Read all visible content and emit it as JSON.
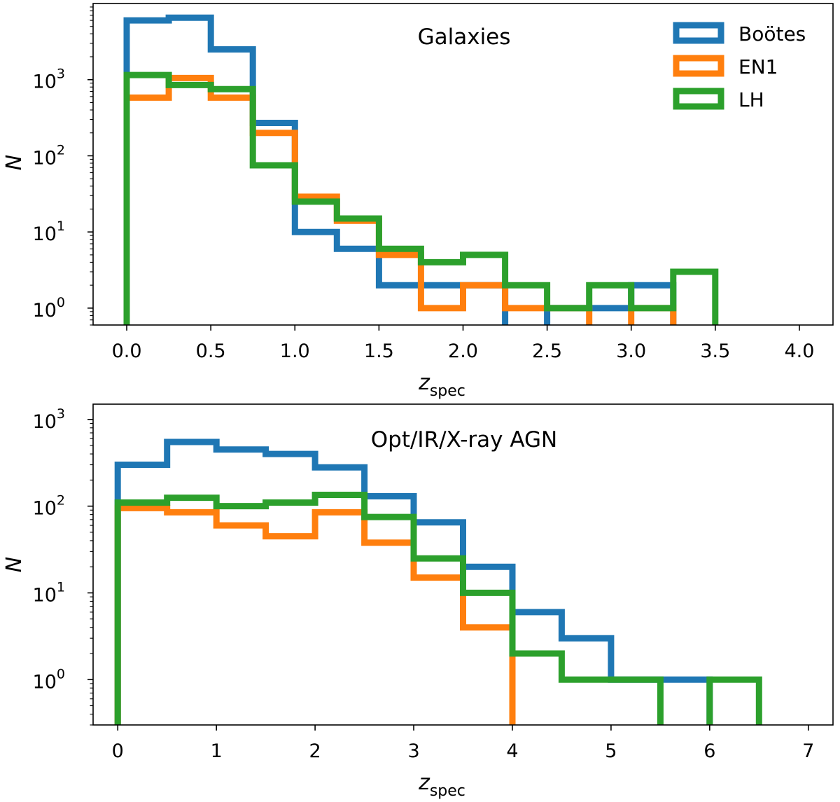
{
  "chart_data": [
    {
      "type": "histogram-step",
      "title": "Galaxies",
      "xlabel": "z",
      "xlabel_sub": "spec",
      "ylabel": "N",
      "yscale": "log",
      "xlim": [
        -0.2,
        4.2
      ],
      "ylim": [
        0.6,
        10000
      ],
      "xticks": [
        "0.0",
        "0.5",
        "1.0",
        "1.5",
        "2.0",
        "2.5",
        "3.0",
        "3.5",
        "4.0"
      ],
      "yticks": [
        {
          "base": "10",
          "exp": "0",
          "value": 1
        },
        {
          "base": "10",
          "exp": "1",
          "value": 10
        },
        {
          "base": "10",
          "exp": "2",
          "value": 100
        },
        {
          "base": "10",
          "exp": "3",
          "value": 1000
        }
      ],
      "legend": {
        "location": "upper right",
        "entries": [
          "Boötes",
          "EN1",
          "LH"
        ]
      },
      "series": [
        {
          "name": "Boötes",
          "color": "#1f77b4",
          "start": 0,
          "width": 0.25,
          "values": [
            6000,
            6500,
            2500,
            270,
            10,
            6,
            2,
            2,
            2,
            0,
            1,
            1,
            2,
            0
          ]
        },
        {
          "name": "EN1",
          "color": "#ff7f0e",
          "start": 0,
          "width": 0.25,
          "values": [
            580,
            1050,
            580,
            200,
            29,
            14,
            5,
            1,
            2,
            1,
            1,
            0,
            1,
            0
          ]
        },
        {
          "name": "LH",
          "color": "#2ca02c",
          "start": 0,
          "width": 0.25,
          "values": [
            1150,
            850,
            750,
            75,
            25,
            15,
            6,
            4,
            5,
            2,
            1,
            2,
            1,
            3
          ]
        }
      ]
    },
    {
      "type": "histogram-step",
      "title": "Opt/IR/X-ray AGN",
      "xlabel": "z",
      "xlabel_sub": "spec",
      "ylabel": "N",
      "yscale": "log",
      "xlim": [
        -0.25,
        7.25
      ],
      "ylim": [
        0.3,
        1500
      ],
      "xticks": [
        "0",
        "1",
        "2",
        "3",
        "4",
        "5",
        "6",
        "7"
      ],
      "yticks": [
        {
          "base": "10",
          "exp": "0",
          "value": 1
        },
        {
          "base": "10",
          "exp": "1",
          "value": 10
        },
        {
          "base": "10",
          "exp": "2",
          "value": 100
        },
        {
          "base": "10",
          "exp": "3",
          "value": 1000
        }
      ],
      "series": [
        {
          "name": "Boötes",
          "color": "#1f77b4",
          "start": 0,
          "width": 0.5,
          "values": [
            300,
            550,
            450,
            400,
            280,
            130,
            65,
            20,
            6,
            3,
            1,
            1,
            0
          ]
        },
        {
          "name": "EN1",
          "color": "#ff7f0e",
          "start": 0,
          "width": 0.5,
          "values": [
            95,
            85,
            60,
            45,
            85,
            38,
            15,
            4,
            0,
            0,
            0,
            0,
            0
          ]
        },
        {
          "name": "LH",
          "color": "#2ca02c",
          "start": 0,
          "width": 0.5,
          "values": [
            110,
            125,
            100,
            110,
            135,
            75,
            25,
            10,
            2,
            1,
            1,
            0,
            1
          ]
        }
      ]
    }
  ]
}
